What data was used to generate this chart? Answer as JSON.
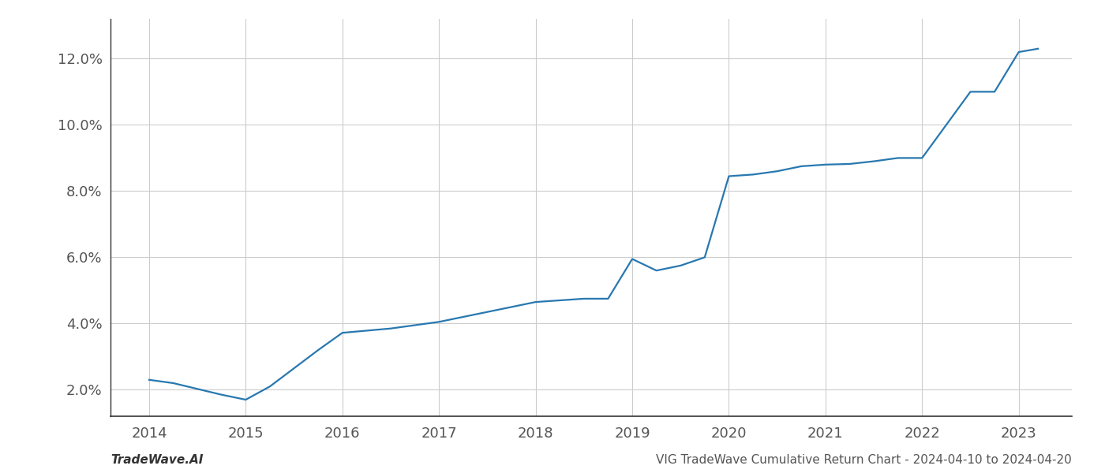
{
  "x_values": [
    2014.0,
    2014.25,
    2014.75,
    2015.0,
    2015.25,
    2015.75,
    2016.0,
    2016.5,
    2017.0,
    2017.5,
    2018.0,
    2018.5,
    2018.75,
    2019.0,
    2019.25,
    2019.5,
    2019.75,
    2020.0,
    2020.25,
    2020.5,
    2020.75,
    2021.0,
    2021.25,
    2021.5,
    2021.75,
    2022.0,
    2022.25,
    2022.5,
    2022.75,
    2023.0,
    2023.2
  ],
  "y_values": [
    2.3,
    2.2,
    1.85,
    1.7,
    2.1,
    3.2,
    3.72,
    3.85,
    4.05,
    4.35,
    4.65,
    4.75,
    4.75,
    5.95,
    5.6,
    5.75,
    6.0,
    8.45,
    8.5,
    8.6,
    8.75,
    8.8,
    8.82,
    8.9,
    9.0,
    9.0,
    10.0,
    11.0,
    11.0,
    12.2,
    12.3
  ],
  "line_color": "#2878b0",
  "line_width": 1.6,
  "xlim": [
    2013.6,
    2023.55
  ],
  "ylim": [
    1.2,
    13.2
  ],
  "yticks": [
    2.0,
    4.0,
    6.0,
    8.0,
    10.0,
    12.0
  ],
  "xticks": [
    2014,
    2015,
    2016,
    2017,
    2018,
    2019,
    2020,
    2021,
    2022,
    2023
  ],
  "grid_color": "#cccccc",
  "background_color": "#ffffff",
  "bottom_left_text": "TradeWave.AI",
  "bottom_right_text": "VIG TradeWave Cumulative Return Chart - 2024-04-10 to 2024-04-20",
  "tick_fontsize": 13,
  "annotation_fontsize": 11,
  "left_spine_color": "#333333",
  "bottom_spine_color": "#333333"
}
